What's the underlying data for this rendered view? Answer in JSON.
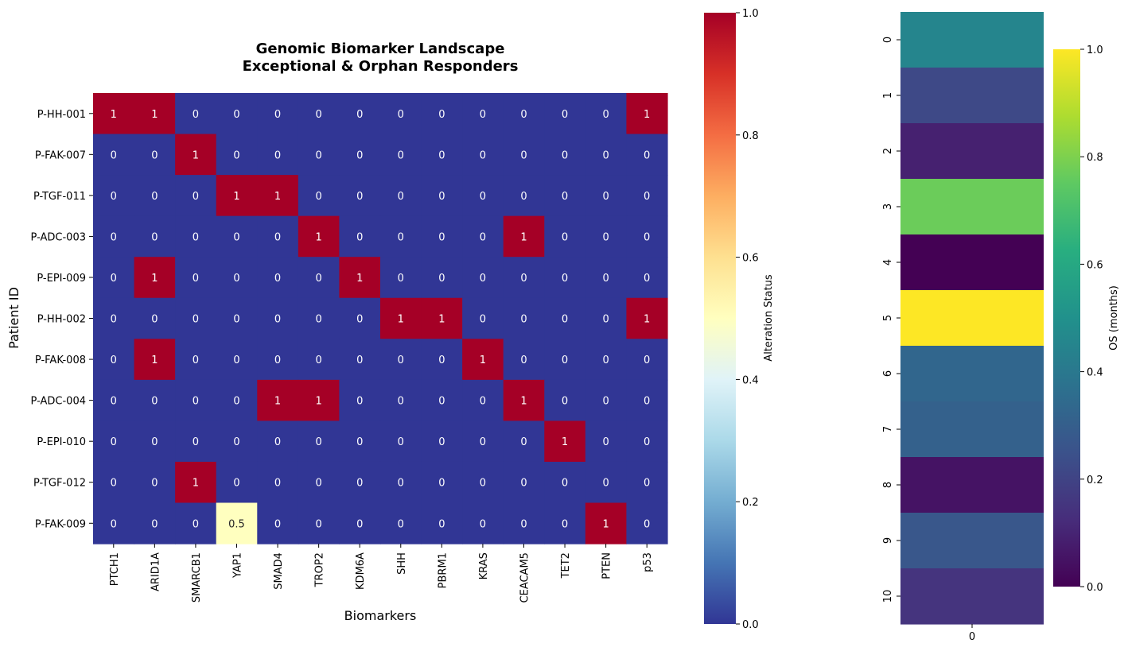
{
  "chart_data": [
    {
      "type": "heatmap",
      "title_lines": [
        "Genomic Biomarker Landscape",
        "Exceptional & Orphan Responders"
      ],
      "xlabel": "Biomarkers",
      "ylabel": "Patient ID",
      "columns": [
        "PTCH1",
        "ARID1A",
        "SMARCB1",
        "YAP1",
        "SMAD4",
        "TROP2",
        "KDM6A",
        "SHH",
        "PBRM1",
        "KRAS",
        "CEACAM5",
        "TET2",
        "PTEN",
        "p53"
      ],
      "rows": [
        "P-HH-001",
        "P-FAK-007",
        "P-TGF-011",
        "P-ADC-003",
        "P-EPI-009",
        "P-HH-002",
        "P-FAK-008",
        "P-ADC-004",
        "P-EPI-010",
        "P-TGF-012",
        "P-FAK-009"
      ],
      "values": [
        [
          1,
          1,
          0,
          0,
          0,
          0,
          0,
          0,
          0,
          0,
          0,
          0,
          0,
          1
        ],
        [
          0,
          0,
          1,
          0,
          0,
          0,
          0,
          0,
          0,
          0,
          0,
          0,
          0,
          0
        ],
        [
          0,
          0,
          0,
          1,
          1,
          0,
          0,
          0,
          0,
          0,
          0,
          0,
          0,
          0
        ],
        [
          0,
          0,
          0,
          0,
          0,
          1,
          0,
          0,
          0,
          0,
          1,
          0,
          0,
          0
        ],
        [
          0,
          1,
          0,
          0,
          0,
          0,
          1,
          0,
          0,
          0,
          0,
          0,
          0,
          0
        ],
        [
          0,
          0,
          0,
          0,
          0,
          0,
          0,
          1,
          1,
          0,
          0,
          0,
          0,
          1
        ],
        [
          0,
          1,
          0,
          0,
          0,
          0,
          0,
          0,
          0,
          1,
          0,
          0,
          0,
          0
        ],
        [
          0,
          0,
          0,
          0,
          1,
          1,
          0,
          0,
          0,
          0,
          1,
          0,
          0,
          0
        ],
        [
          0,
          0,
          0,
          0,
          0,
          0,
          0,
          0,
          0,
          0,
          0,
          1,
          0,
          0
        ],
        [
          0,
          0,
          1,
          0,
          0,
          0,
          0,
          0,
          0,
          0,
          0,
          0,
          0,
          0
        ],
        [
          0,
          0,
          0,
          0.5,
          0,
          0,
          0,
          0,
          0,
          0,
          0,
          0,
          1,
          0
        ]
      ],
      "value_labels": [
        [
          "1",
          "1",
          "0",
          "0",
          "0",
          "0",
          "0",
          "0",
          "0",
          "0",
          "0",
          "0",
          "0",
          "1"
        ],
        [
          "0",
          "0",
          "1",
          "0",
          "0",
          "0",
          "0",
          "0",
          "0",
          "0",
          "0",
          "0",
          "0",
          "0"
        ],
        [
          "0",
          "0",
          "0",
          "1",
          "1",
          "0",
          "0",
          "0",
          "0",
          "0",
          "0",
          "0",
          "0",
          "0"
        ],
        [
          "0",
          "0",
          "0",
          "0",
          "0",
          "1",
          "0",
          "0",
          "0",
          "0",
          "1",
          "0",
          "0",
          "0"
        ],
        [
          "0",
          "1",
          "0",
          "0",
          "0",
          "0",
          "1",
          "0",
          "0",
          "0",
          "0",
          "0",
          "0",
          "0"
        ],
        [
          "0",
          "0",
          "0",
          "0",
          "0",
          "0",
          "0",
          "1",
          "1",
          "0",
          "0",
          "0",
          "0",
          "1"
        ],
        [
          "0",
          "1",
          "0",
          "0",
          "0",
          "0",
          "0",
          "0",
          "0",
          "1",
          "0",
          "0",
          "0",
          "0"
        ],
        [
          "0",
          "0",
          "0",
          "0",
          "1",
          "1",
          "0",
          "0",
          "0",
          "0",
          "1",
          "0",
          "0",
          "0"
        ],
        [
          "0",
          "0",
          "0",
          "0",
          "0",
          "0",
          "0",
          "0",
          "0",
          "0",
          "0",
          "1",
          "0",
          "0"
        ],
        [
          "0",
          "0",
          "1",
          "0",
          "0",
          "0",
          "0",
          "0",
          "0",
          "0",
          "0",
          "0",
          "0",
          "0"
        ],
        [
          "0",
          "0",
          "0",
          "0.5",
          "0",
          "0",
          "0",
          "0",
          "0",
          "0",
          "0",
          "0",
          "1",
          "0"
        ]
      ],
      "colormap": "RdYlBu_r",
      "colorbar": {
        "label": "Alteration Status",
        "range": [
          0,
          1
        ],
        "ticks": [
          "0.0",
          "0.2",
          "0.4",
          "0.6",
          "0.8",
          "1.0"
        ]
      }
    },
    {
      "type": "heatmap",
      "columns": [
        "0"
      ],
      "rows": [
        "0",
        "1",
        "2",
        "3",
        "4",
        "5",
        "6",
        "7",
        "8",
        "9",
        "10"
      ],
      "values": [
        0.45,
        0.22,
        0.09,
        0.77,
        0.0,
        1.0,
        0.33,
        0.31,
        0.05,
        0.27,
        0.15
      ],
      "colormap": "viridis",
      "colorbar": {
        "label": "OS (months)",
        "range": [
          0,
          1
        ],
        "ticks": [
          "0.0",
          "0.2",
          "0.4",
          "0.6",
          "0.8",
          "1.0"
        ]
      }
    }
  ]
}
